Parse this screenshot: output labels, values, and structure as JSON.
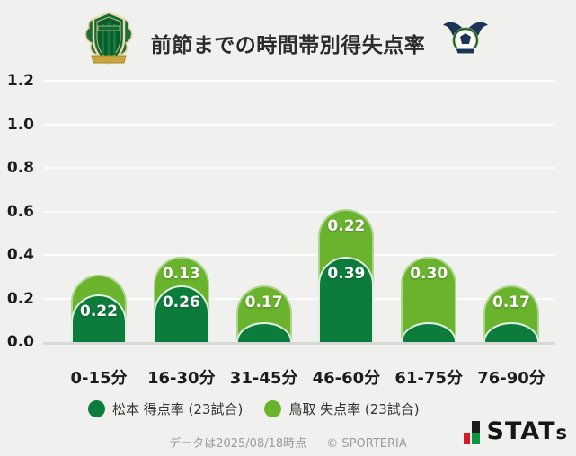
{
  "header": {
    "title": "前節までの時間帯別得失点率",
    "left_logo": "松本山雅FC",
    "right_logo": "ガイナーレ鳥取"
  },
  "chart_data": {
    "type": "bar",
    "stacked": true,
    "categories": [
      "0-15分",
      "16-30分",
      "31-45分",
      "46-60分",
      "61-75分",
      "76-90分"
    ],
    "series": [
      {
        "name": "松本 得点率 (23試合)",
        "color": "#0b7c3c",
        "values": [
          0.22,
          0.26,
          0.09,
          0.39,
          0.09,
          0.09
        ],
        "labels": [
          "0.22",
          "0.26",
          "",
          "0.39",
          "",
          ""
        ]
      },
      {
        "name": "鳥取 失点率 (23試合)",
        "color": "#6ab32d",
        "values": [
          0.09,
          0.13,
          0.17,
          0.22,
          0.3,
          0.17
        ],
        "labels": [
          "",
          "0.13",
          "0.17",
          "0.22",
          "0.30",
          "0.17"
        ]
      }
    ],
    "title": "前節までの時間帯別得失点率",
    "xlabel": "",
    "ylabel": "",
    "ylim": [
      0,
      1.2
    ],
    "yticks": [
      "1.2",
      "1.0",
      "0.8",
      "0.6",
      "0.4",
      "0.2",
      "0.0"
    ],
    "grid": true,
    "legend_position": "bottom"
  },
  "legend": {
    "items": [
      {
        "label": "松本 得点率 (23試合)",
        "color": "#0b7c3c"
      },
      {
        "label": "鳥取 失点率 (23試合)",
        "color": "#6ab32d"
      }
    ]
  },
  "footer": {
    "note": "データは2025/08/18時点",
    "copyright": "© SPORTERIA",
    "brand_main": "STAT",
    "brand_small": "s"
  },
  "colors": {
    "background": "#f0f0ee",
    "gridline": "#fcfcfb",
    "axis": "#d8d8d4",
    "dark_green": "#0b7c3c",
    "light_green": "#6ab32d",
    "brand_red": "#d7182a",
    "brand_green": "#089740"
  }
}
